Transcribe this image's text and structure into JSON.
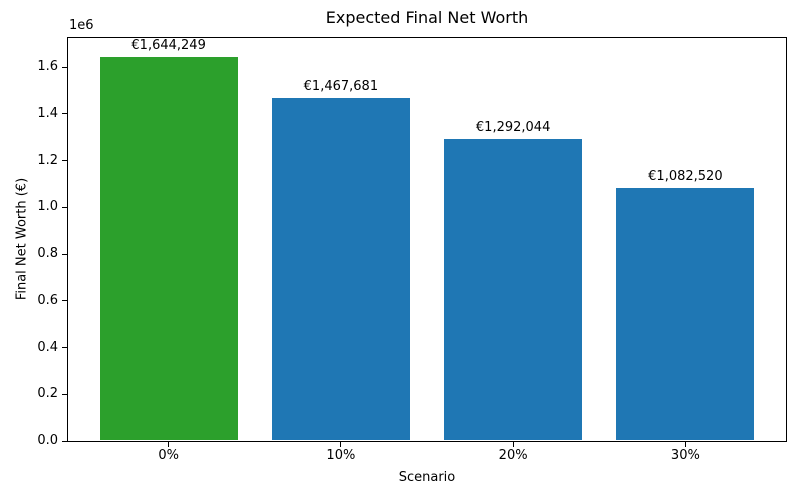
{
  "chart_data": {
    "type": "bar",
    "title": "Expected Final Net Worth",
    "xlabel": "Scenario",
    "ylabel": "Final Net Worth (€)",
    "categories": [
      "0%",
      "10%",
      "20%",
      "30%"
    ],
    "values": [
      1644249,
      1467681,
      1292044,
      1082520
    ],
    "bar_labels": [
      "€1,644,249",
      "€1,467,681",
      "€1,292,044",
      "€1,082,520"
    ],
    "bar_colors": [
      "#2ca02c",
      "#1f77b4",
      "#1f77b4",
      "#1f77b4"
    ],
    "highlight_color": "#2ca02c",
    "default_color": "#1f77b4",
    "ylim": [
      0,
      1728000
    ],
    "ytick_step": 200000,
    "yticks": [
      "0.0",
      "0.2",
      "0.4",
      "0.6",
      "0.8",
      "1.0",
      "1.2",
      "1.4",
      "1.6"
    ],
    "y_offset_text": "1e6",
    "grid": false,
    "legend": "none",
    "axis_color": "#000000",
    "background": "#ffffff"
  }
}
